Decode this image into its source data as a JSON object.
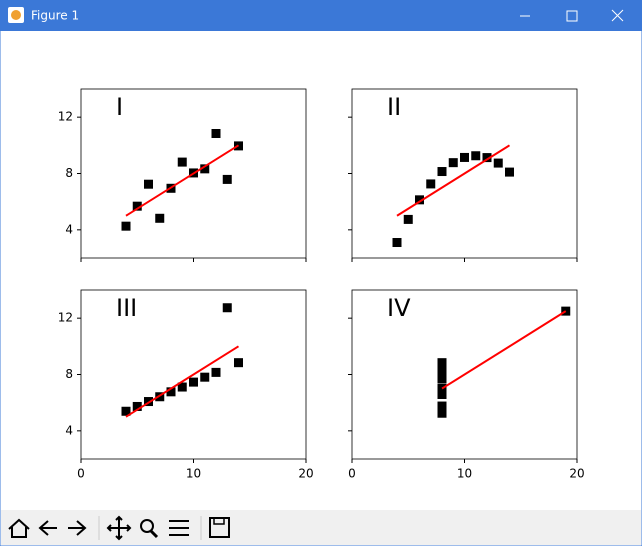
{
  "window": {
    "title": "Figure 1"
  },
  "chart_data": [
    {
      "type": "scatter",
      "label": "I",
      "xlim": [
        0,
        20
      ],
      "ylim": [
        2,
        14
      ],
      "xticks": [
        0,
        10,
        20
      ],
      "yticks": [
        4,
        8,
        12
      ],
      "series": [
        {
          "type": "scatter",
          "color": "#000000",
          "x": [
            10,
            8,
            13,
            9,
            11,
            14,
            6,
            4,
            12,
            7,
            5
          ],
          "values": [
            8.04,
            6.95,
            7.58,
            8.81,
            8.33,
            9.96,
            7.24,
            4.26,
            10.84,
            4.82,
            5.68
          ]
        },
        {
          "type": "line",
          "color": "#ff0000",
          "x": [
            4,
            14
          ],
          "values": [
            5,
            10
          ]
        }
      ]
    },
    {
      "type": "scatter",
      "label": "II",
      "xlim": [
        0,
        20
      ],
      "ylim": [
        2,
        14
      ],
      "xticks": [
        0,
        10,
        20
      ],
      "yticks": [
        4,
        8,
        12
      ],
      "series": [
        {
          "type": "scatter",
          "color": "#000000",
          "x": [
            10,
            8,
            13,
            9,
            11,
            14,
            6,
            4,
            12,
            7,
            5
          ],
          "values": [
            9.14,
            8.14,
            8.74,
            8.77,
            9.26,
            8.1,
            6.13,
            3.1,
            9.13,
            7.26,
            4.74
          ]
        },
        {
          "type": "line",
          "color": "#ff0000",
          "x": [
            4,
            14
          ],
          "values": [
            5,
            10
          ]
        }
      ]
    },
    {
      "type": "scatter",
      "label": "III",
      "xlim": [
        0,
        20
      ],
      "ylim": [
        2,
        14
      ],
      "xticks": [
        0,
        10,
        20
      ],
      "yticks": [
        4,
        8,
        12
      ],
      "series": [
        {
          "type": "scatter",
          "color": "#000000",
          "x": [
            10,
            8,
            13,
            9,
            11,
            14,
            6,
            4,
            12,
            7,
            5
          ],
          "values": [
            7.46,
            6.77,
            12.74,
            7.11,
            7.81,
            8.84,
            6.08,
            5.39,
            8.15,
            6.42,
            5.73
          ]
        },
        {
          "type": "line",
          "color": "#ff0000",
          "x": [
            4,
            14
          ],
          "values": [
            5,
            10
          ]
        }
      ]
    },
    {
      "type": "scatter",
      "label": "IV",
      "xlim": [
        0,
        20
      ],
      "ylim": [
        2,
        14
      ],
      "xticks": [
        0,
        10,
        20
      ],
      "yticks": [
        4,
        8,
        12
      ],
      "series": [
        {
          "type": "scatter",
          "color": "#000000",
          "x": [
            8,
            8,
            8,
            8,
            8,
            8,
            8,
            19,
            8,
            8,
            8
          ],
          "values": [
            6.58,
            5.76,
            7.71,
            8.84,
            8.47,
            7.04,
            5.25,
            12.5,
            5.56,
            7.91,
            6.89
          ]
        },
        {
          "type": "line",
          "color": "#ff0000",
          "x": [
            8,
            19
          ],
          "values": [
            7,
            12.5
          ]
        }
      ]
    }
  ]
}
